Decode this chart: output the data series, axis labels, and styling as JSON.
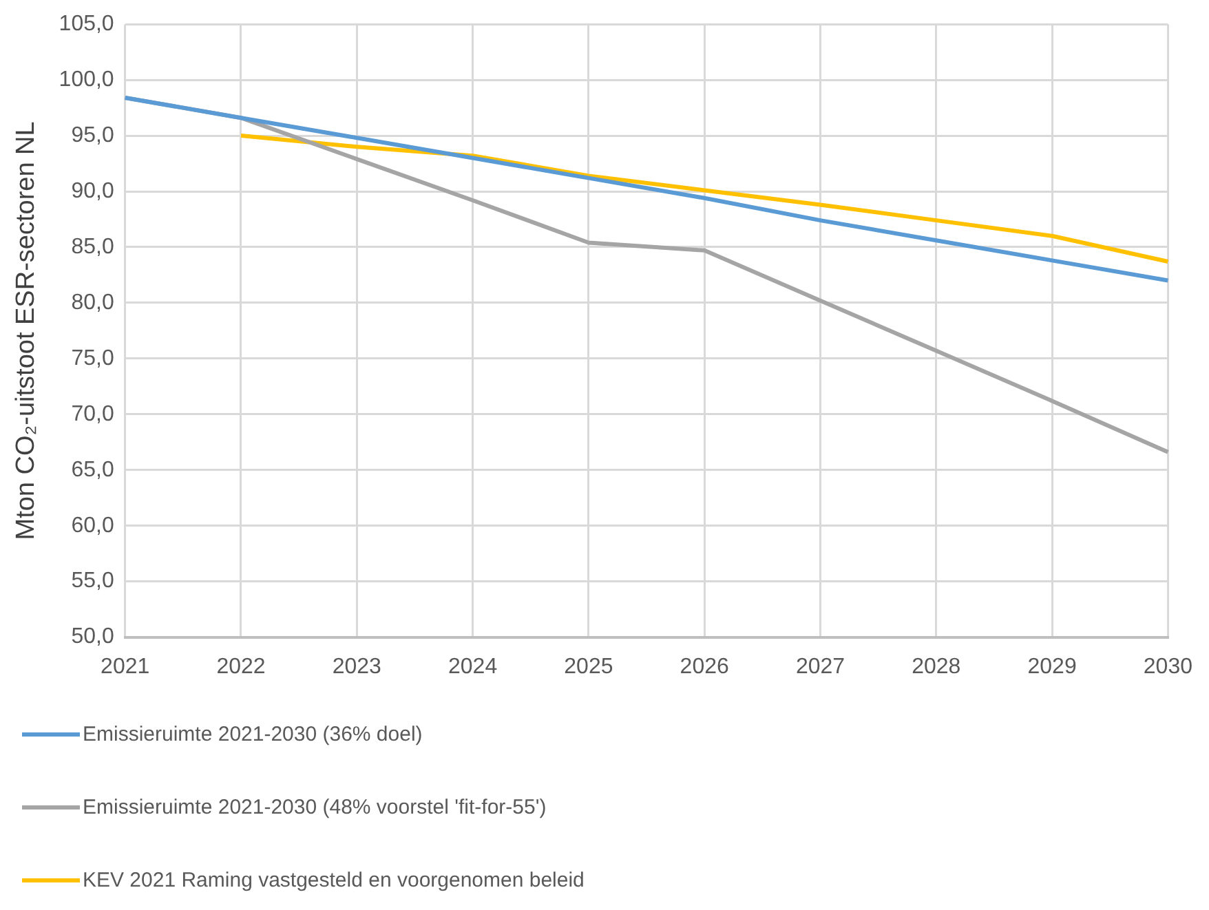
{
  "chart_data": {
    "type": "line",
    "ylabel": "Mton CO₂-uitstoot ESR-sectoren NL",
    "categories": [
      "2021",
      "2022",
      "2023",
      "2024",
      "2025",
      "2026",
      "2027",
      "2028",
      "2029",
      "2030"
    ],
    "series": [
      {
        "name": "Emissieruimte 2021-2030 (36% doel)",
        "color": "#5b9bd5",
        "values": [
          98.4,
          96.6,
          94.8,
          93.0,
          91.2,
          89.4,
          87.4,
          85.6,
          83.8,
          82.0
        ]
      },
      {
        "name": "Emissieruimte 2021-2030 (48% voorstel 'fit-for-55')",
        "color": "#a5a5a5",
        "values": [
          98.4,
          96.6,
          92.9,
          89.2,
          85.4,
          84.7,
          80.2,
          75.7,
          71.2,
          66.6
        ]
      },
      {
        "name": "KEV 2021 Raming vastgesteld en voorgenomen beleid",
        "color": "#ffc000",
        "values": [
          null,
          95.0,
          94.0,
          93.2,
          91.4,
          90.1,
          88.8,
          87.4,
          86.0,
          83.7
        ]
      }
    ],
    "ylim": [
      50,
      105
    ],
    "yticks": [
      {
        "value": 50,
        "label": "50,0"
      },
      {
        "value": 55,
        "label": "55,0"
      },
      {
        "value": 60,
        "label": "60,0"
      },
      {
        "value": 65,
        "label": "65,0"
      },
      {
        "value": 70,
        "label": "70,0"
      },
      {
        "value": 75,
        "label": "75,0"
      },
      {
        "value": 80,
        "label": "80,0"
      },
      {
        "value": 85,
        "label": "85,0"
      },
      {
        "value": 90,
        "label": "90,0"
      },
      {
        "value": 95,
        "label": "95,0"
      },
      {
        "value": 100,
        "label": "100,0"
      },
      {
        "value": 105,
        "label": "105,0"
      }
    ],
    "grid": true,
    "legend": "bottom",
    "marker": "none",
    "line_style": "solid"
  }
}
